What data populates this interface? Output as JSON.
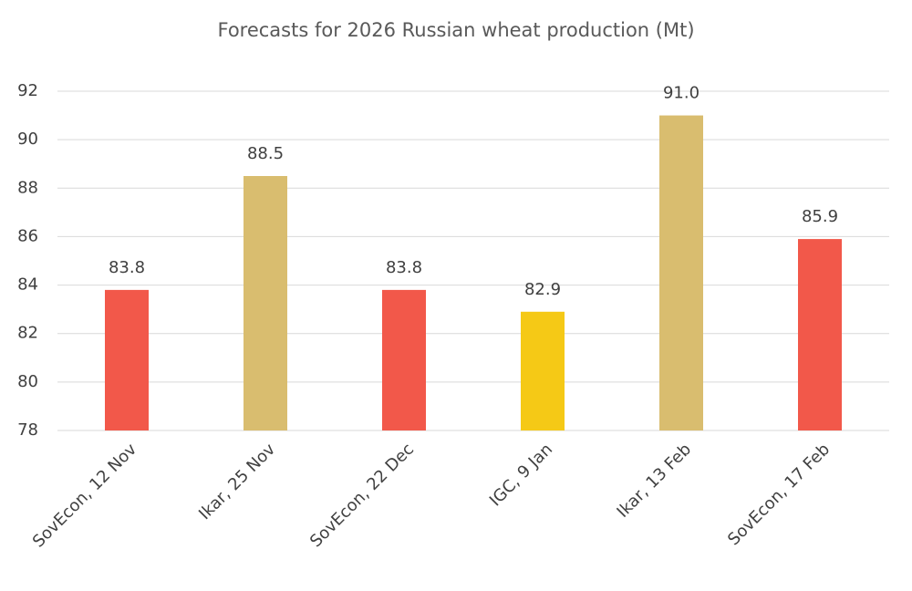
{
  "chart_data": {
    "type": "bar",
    "title": "Forecasts for 2026 Russian wheat production (Mt)",
    "categories": [
      "SovEcon, 12 Nov",
      "Ikar, 25 Nov",
      "SovEcon, 22 Dec",
      "IGC, 9 Jan",
      "Ikar, 13 Feb",
      "SovEcon, 17 Feb"
    ],
    "values": [
      83.8,
      88.5,
      83.8,
      82.9,
      91.0,
      85.9
    ],
    "value_labels": [
      "83.8",
      "88.5",
      "83.8",
      "82.9",
      "91.0",
      "85.9"
    ],
    "colors": [
      "#f2584a",
      "#d9bd6f",
      "#f2584a",
      "#f5c916",
      "#d9bd6f",
      "#f2584a"
    ],
    "ylim": [
      78,
      92
    ],
    "yticks": [
      78,
      80,
      82,
      84,
      86,
      88,
      90,
      92
    ],
    "grid": true
  }
}
